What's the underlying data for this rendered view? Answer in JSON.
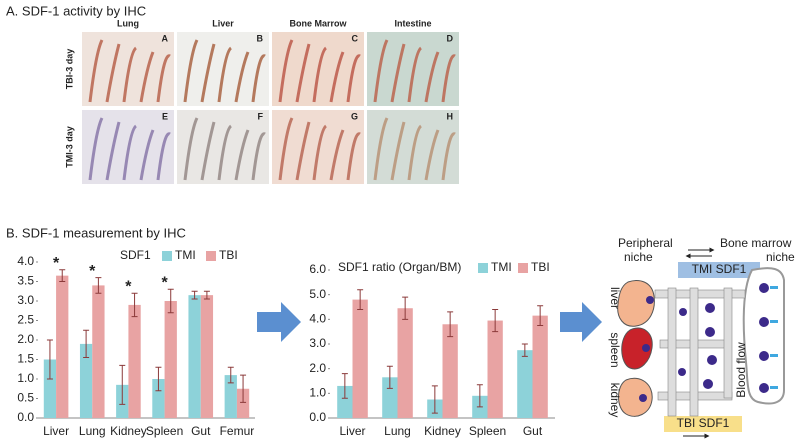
{
  "panel_a": {
    "title": "A. SDF-1 activity by IHC",
    "columns": [
      "Lung",
      "Liver",
      "Bone Marrow",
      "Intestine"
    ],
    "rows": [
      "TBI-3 day",
      "TMI-3 day"
    ],
    "letters": [
      [
        "A",
        "B",
        "C",
        "D"
      ],
      [
        "E",
        "F",
        "G",
        "H"
      ]
    ]
  },
  "panel_b": {
    "title": "B. SDF-1 measurement by IHC"
  },
  "chart_data": [
    {
      "type": "bar",
      "legend_title": "SDF1",
      "categories": [
        "Liver",
        "Lung",
        "Kidney",
        "Spleen",
        "Gut",
        "Femur"
      ],
      "series": [
        {
          "name": "TMI",
          "color": "#8dd2d9",
          "values": [
            1.5,
            1.9,
            0.85,
            1.0,
            3.15,
            1.1
          ],
          "errors": [
            0.5,
            0.35,
            0.5,
            0.3,
            0.1,
            0.2
          ]
        },
        {
          "name": "TBI",
          "color": "#e8a3a3",
          "values": [
            3.65,
            3.4,
            2.9,
            3.0,
            3.15,
            0.75
          ],
          "errors": [
            0.15,
            0.2,
            0.3,
            0.3,
            0.1,
            0.35
          ]
        }
      ],
      "significance": [
        "*",
        "*",
        "*",
        "*",
        null,
        null
      ],
      "ylim": [
        0,
        4
      ],
      "yticks": [
        {
          "value": 0,
          "label": "0.0"
        },
        0.5,
        {
          "value": 1,
          "label": "1.0"
        },
        1.5,
        {
          "value": 2,
          "label": "2.0"
        },
        2.5,
        {
          "value": 3,
          "label": "3.0"
        },
        3.5,
        {
          "value": 4,
          "label": "4.0"
        }
      ]
    },
    {
      "type": "bar",
      "legend_title": "SDF1 ratio (Organ/BM)",
      "categories": [
        "Liver",
        "Lung",
        "Kidney",
        "Spleen",
        "Gut"
      ],
      "series": [
        {
          "name": "TMI",
          "color": "#8dd2d9",
          "values": [
            1.3,
            1.65,
            0.75,
            0.9,
            2.75
          ],
          "errors": [
            0.5,
            0.45,
            0.55,
            0.45,
            0.25
          ]
        },
        {
          "name": "TBI",
          "color": "#e8a3a3",
          "values": [
            4.8,
            4.45,
            3.8,
            3.95,
            4.15
          ],
          "errors": [
            0.4,
            0.45,
            0.5,
            0.45,
            0.4
          ]
        }
      ],
      "ylim": [
        0,
        6
      ],
      "yticks": [
        {
          "value": 0,
          "label": "0.0"
        },
        {
          "value": 1,
          "label": "1.0"
        },
        {
          "value": 2,
          "label": "2.0"
        },
        {
          "value": 3,
          "label": "3.0"
        },
        {
          "value": 4,
          "label": "4.0"
        },
        {
          "value": 5,
          "label": "5.0"
        },
        {
          "value": 6,
          "label": "6.0"
        }
      ]
    }
  ],
  "diagram": {
    "peripheral_niche": [
      "Peripheral",
      "niche"
    ],
    "bone_marrow_niche": [
      "Bone marrow",
      "niche"
    ],
    "tmi_bar": "TMI SDF1",
    "tbi_bar": "TBI SDF1",
    "organs": [
      "liver",
      "spleen",
      "kidney"
    ],
    "flow": "Blood flow"
  }
}
